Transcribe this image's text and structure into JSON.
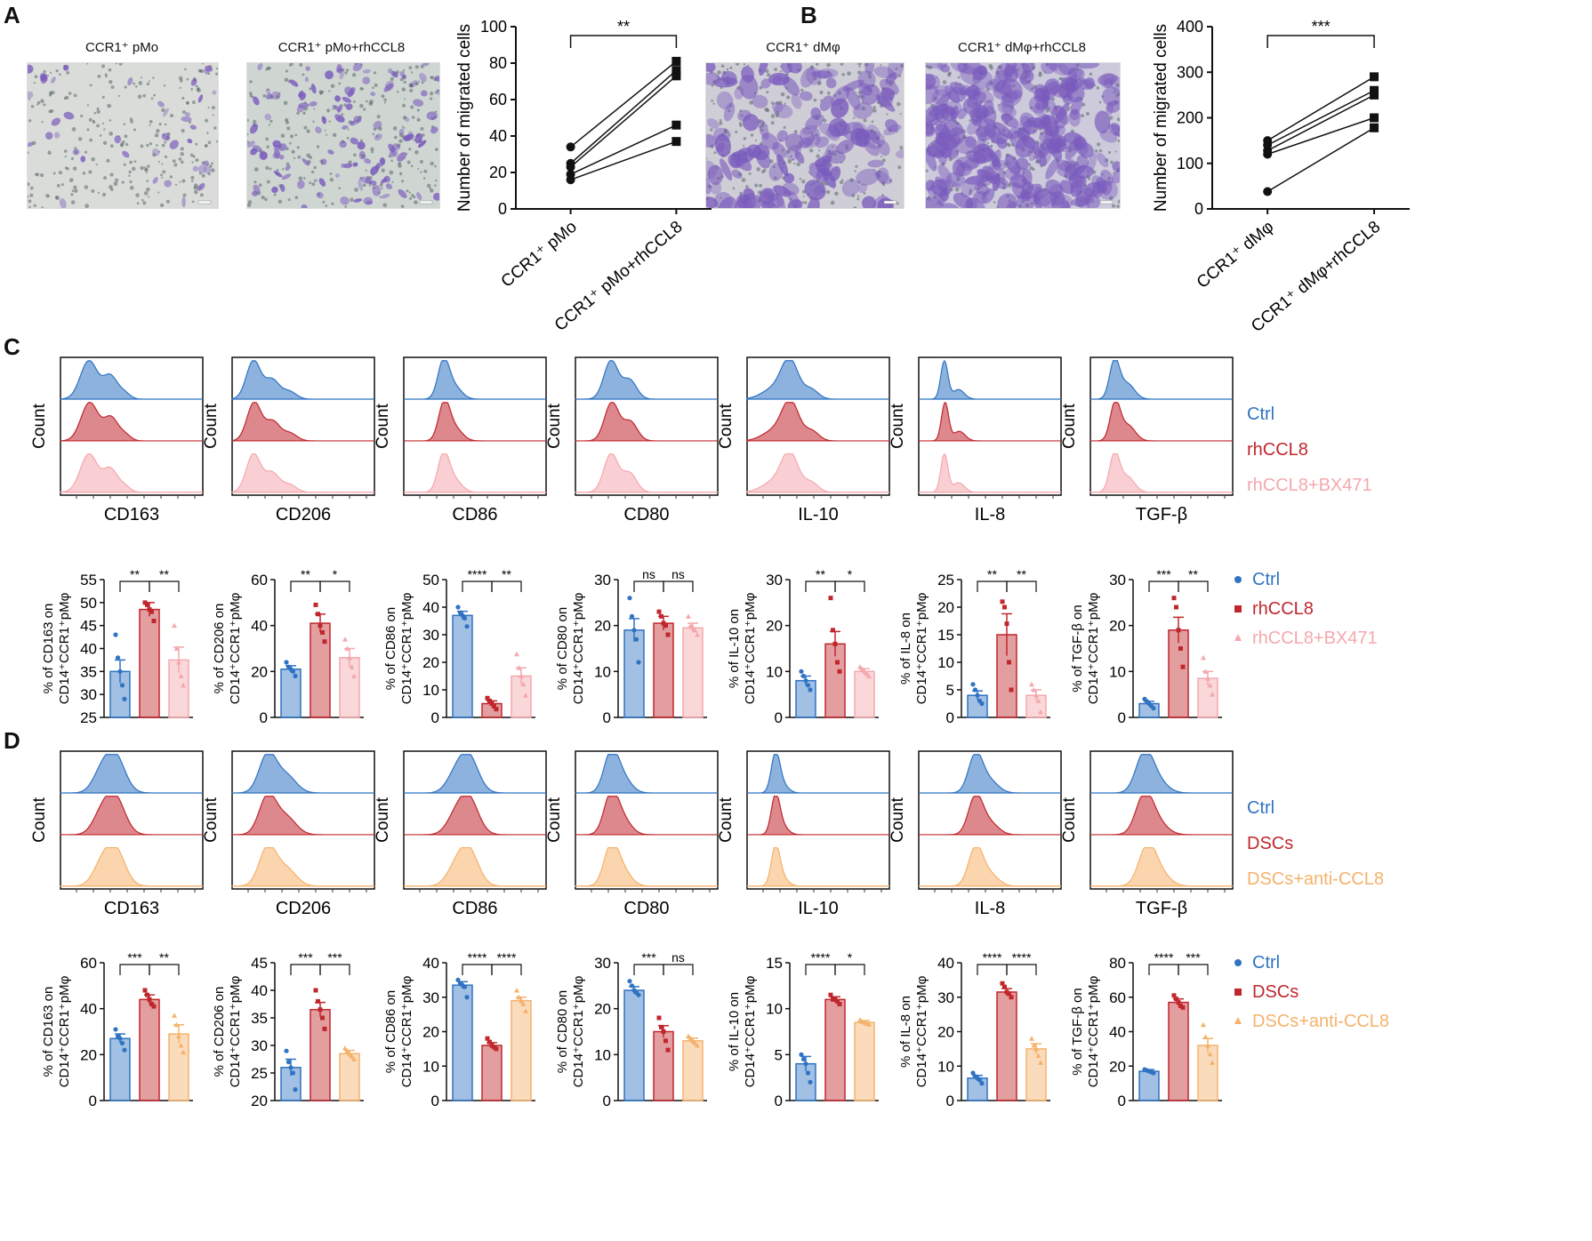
{
  "colors": {
    "ctrl": "#2f73c2",
    "rhccl8": "#c0272d",
    "bx471": "#f4a8ae",
    "dscs": "#c0272d",
    "anti": "#f5b26b",
    "stain": "#7a5bbd",
    "ink": "#111111"
  },
  "panelA": {
    "letter": "A",
    "img1_title": "CCR1⁺ pMo",
    "img2_title": "CCR1⁺ pMo+rhCCL8",
    "chart": {
      "type": "scatter",
      "title": "",
      "ylabel": "Number of migrated cells",
      "ylim": [
        0,
        100
      ],
      "yticks": [
        0,
        20,
        40,
        60,
        80,
        100
      ],
      "categories": [
        "CCR1⁺ pMo",
        "CCR1⁺ pMo+rhCCL8"
      ],
      "pairs": [
        [
          34,
          81
        ],
        [
          25,
          76
        ],
        [
          23,
          73
        ],
        [
          19,
          46
        ],
        [
          16,
          37
        ]
      ],
      "significance": "**"
    }
  },
  "panelB": {
    "letter": "B",
    "img1_title": "CCR1⁺ dMφ",
    "img2_title": "CCR1⁺ dMφ+rhCCL8",
    "chart": {
      "type": "scatter",
      "title": "",
      "ylabel": "Number of migrated cells",
      "ylim": [
        0,
        400
      ],
      "yticks": [
        0,
        100,
        200,
        300,
        400
      ],
      "categories": [
        "CCR1⁺ dMφ",
        "CCR1⁺ dMφ+rhCCL8"
      ],
      "pairs": [
        [
          150,
          290
        ],
        [
          140,
          260
        ],
        [
          128,
          250
        ],
        [
          120,
          200
        ],
        [
          38,
          178
        ]
      ],
      "significance": "***"
    }
  },
  "panelC": {
    "letter": "C",
    "count_label": "Count",
    "markers": [
      "CD163",
      "CD206",
      "CD86",
      "CD80",
      "IL-10",
      "IL-8",
      "TGF-β"
    ],
    "legend": [
      "Ctrl",
      "rhCCL8",
      "rhCCL8+BX471"
    ],
    "chart_data": [
      {
        "type": "bar",
        "marker": "CD163",
        "ylabel": [
          "% of CD163 on",
          "CD14⁺CCR1⁺pMφ"
        ],
        "ylim": [
          25,
          55
        ],
        "yticks": [
          25,
          30,
          35,
          40,
          45,
          50,
          55
        ],
        "groups": [
          "Ctrl",
          "rhCCL8",
          "rhCCL8+BX471"
        ],
        "values": [
          35,
          48.5,
          37.5
        ],
        "sem": [
          2.5,
          1.5,
          2.8
        ],
        "points": [
          [
            43,
            38,
            35,
            32,
            29
          ],
          [
            50,
            49.5,
            48.5,
            48,
            46
          ],
          [
            45,
            40,
            37,
            34,
            32
          ]
        ],
        "sig": [
          "**",
          "**"
        ]
      },
      {
        "type": "bar",
        "marker": "CD206",
        "ylabel": [
          "% of CD206 on",
          "CD14⁺CCR1⁺pMφ"
        ],
        "ylim": [
          0,
          60
        ],
        "yticks": [
          0,
          20,
          40,
          60
        ],
        "groups": [
          "Ctrl",
          "rhCCL8",
          "rhCCL8+BX471"
        ],
        "values": [
          21,
          41,
          26
        ],
        "sem": [
          1.5,
          4,
          4
        ],
        "points": [
          [
            24,
            22,
            21,
            20,
            18
          ],
          [
            49,
            45,
            40,
            37,
            33
          ],
          [
            34,
            30,
            26,
            22,
            18
          ]
        ],
        "sig": [
          "**",
          "*"
        ]
      },
      {
        "type": "bar",
        "marker": "CD86",
        "ylabel": [
          "% of CD86 on",
          "CD14⁺CCR1⁺pMφ"
        ],
        "ylim": [
          0,
          50
        ],
        "yticks": [
          0,
          10,
          20,
          30,
          40,
          50
        ],
        "groups": [
          "Ctrl",
          "rhCCL8",
          "rhCCL8+BX471"
        ],
        "values": [
          37,
          5,
          15
        ],
        "sem": [
          1.5,
          1,
          3
        ],
        "points": [
          [
            40,
            38,
            37,
            36,
            33
          ],
          [
            7,
            6,
            5,
            4,
            3
          ],
          [
            23,
            18,
            15,
            12,
            8
          ]
        ],
        "sig": [
          "****",
          "**"
        ]
      },
      {
        "type": "bar",
        "marker": "CD80",
        "ylabel": [
          "% of CD80 on",
          "CD14⁺CCR1⁺pMφ"
        ],
        "ylim": [
          0,
          30
        ],
        "yticks": [
          0,
          10,
          20,
          30
        ],
        "groups": [
          "Ctrl",
          "rhCCL8",
          "rhCCL8+BX471"
        ],
        "values": [
          19,
          20.5,
          19.5
        ],
        "sem": [
          2.5,
          1.5,
          1
        ],
        "points": [
          [
            26,
            22,
            19,
            17,
            12
          ],
          [
            23,
            22,
            20.5,
            20,
            18
          ],
          [
            22,
            20,
            19.5,
            19,
            18
          ]
        ],
        "sig": [
          "ns",
          "ns"
        ]
      },
      {
        "type": "bar",
        "marker": "IL-10",
        "ylabel": [
          "% of IL-10 on",
          "CD14⁺CCR1⁺pMφ"
        ],
        "ylim": [
          0,
          30
        ],
        "yticks": [
          0,
          10,
          20,
          30
        ],
        "groups": [
          "Ctrl",
          "rhCCL8",
          "rhCCL8+BX471"
        ],
        "values": [
          8,
          16,
          10
        ],
        "sem": [
          1,
          2.7,
          0.6
        ],
        "points": [
          [
            10,
            9,
            8,
            7,
            6
          ],
          [
            26,
            19,
            16,
            12,
            10
          ],
          [
            11,
            10.5,
            10,
            9.5,
            9
          ]
        ],
        "sig": [
          "**",
          "*"
        ]
      },
      {
        "type": "bar",
        "marker": "IL-8",
        "ylabel": [
          "% of IL-8 on",
          "CD14⁺CCR1⁺pMφ"
        ],
        "ylim": [
          0,
          25
        ],
        "yticks": [
          0,
          5,
          10,
          15,
          20,
          25
        ],
        "groups": [
          "Ctrl",
          "rhCCL8",
          "rhCCL8+BX471"
        ],
        "values": [
          4,
          15,
          4
        ],
        "sem": [
          0.8,
          3.8,
          1
        ],
        "points": [
          [
            6,
            5,
            4,
            3,
            2.5
          ],
          [
            21,
            20,
            17,
            10,
            5
          ],
          [
            6,
            5,
            4,
            3,
            1
          ]
        ],
        "sig": [
          "**",
          "**"
        ]
      },
      {
        "type": "bar",
        "marker": "TGF-β",
        "ylabel": [
          "% of TGF-β on",
          "CD14⁺CCR1⁺pMφ"
        ],
        "ylim": [
          0,
          30
        ],
        "yticks": [
          0,
          10,
          20,
          30
        ],
        "groups": [
          "Ctrl",
          "rhCCL8",
          "rhCCL8+BX471"
        ],
        "values": [
          3,
          19,
          8.5
        ],
        "sem": [
          0.5,
          2.8,
          1.5
        ],
        "points": [
          [
            4,
            3.5,
            3,
            2.5,
            2
          ],
          [
            26,
            24,
            19,
            15,
            11
          ],
          [
            13,
            10,
            8.5,
            7,
            5
          ]
        ],
        "sig": [
          "***",
          "**"
        ]
      }
    ]
  },
  "panelD": {
    "letter": "D",
    "count_label": "Count",
    "markers": [
      "CD163",
      "CD206",
      "CD86",
      "CD80",
      "IL-10",
      "IL-8",
      "TGF-β"
    ],
    "legend": [
      "Ctrl",
      "DSCs",
      "DSCs+anti-CCL8"
    ],
    "chart_data": [
      {
        "type": "bar",
        "marker": "CD163",
        "ylabel": [
          "% of CD163 on",
          "CD14⁺CCR1⁺pMφ"
        ],
        "ylim": [
          0,
          60
        ],
        "yticks": [
          0,
          20,
          40,
          60
        ],
        "groups": [
          "Ctrl",
          "DSCs",
          "DSCs+anti-CCL8"
        ],
        "values": [
          27,
          44,
          29
        ],
        "sem": [
          2,
          2,
          4
        ],
        "points": [
          [
            31,
            28,
            27,
            25,
            22
          ],
          [
            48,
            46,
            44,
            42,
            41
          ],
          [
            37,
            33,
            28,
            24,
            21
          ]
        ],
        "sig": [
          "***",
          "**"
        ]
      },
      {
        "type": "bar",
        "marker": "CD206",
        "ylabel": [
          "% of CD206 on",
          "CD14⁺CCR1⁺pMφ"
        ],
        "ylim": [
          20,
          45
        ],
        "yticks": [
          20,
          25,
          30,
          35,
          40,
          45
        ],
        "groups": [
          "Ctrl",
          "DSCs",
          "DSCs+anti-CCL8"
        ],
        "values": [
          26,
          36.5,
          28.5
        ],
        "sem": [
          1.5,
          1.3,
          0.6
        ],
        "points": [
          [
            29,
            27,
            26,
            25,
            22
          ],
          [
            40,
            38,
            36.5,
            35,
            33
          ],
          [
            29.5,
            29,
            28.5,
            28,
            27.5
          ]
        ],
        "sig": [
          "***",
          "***"
        ]
      },
      {
        "type": "bar",
        "marker": "CD86",
        "ylabel": [
          "% of CD86 on",
          "CD14⁺CCR1⁺pMφ"
        ],
        "ylim": [
          0,
          40
        ],
        "yticks": [
          0,
          10,
          20,
          30,
          40
        ],
        "groups": [
          "Ctrl",
          "DSCs",
          "DSCs+anti-CCL8"
        ],
        "values": [
          33.5,
          16,
          29
        ],
        "sem": [
          1,
          0.8,
          1
        ],
        "points": [
          [
            35,
            34,
            33.5,
            33,
            30
          ],
          [
            18,
            17,
            16,
            15.5,
            15
          ],
          [
            32,
            30,
            29,
            28,
            26
          ]
        ],
        "sig": [
          "****",
          "****"
        ]
      },
      {
        "type": "bar",
        "marker": "CD80",
        "ylabel": [
          "% of CD80 on",
          "CD14⁺CCR1⁺pMφ"
        ],
        "ylim": [
          0,
          30
        ],
        "yticks": [
          0,
          10,
          20,
          30
        ],
        "groups": [
          "Ctrl",
          "DSCs",
          "DSCs+anti-CCL8"
        ],
        "values": [
          24,
          15,
          13
        ],
        "sem": [
          0.8,
          1.3,
          0.6
        ],
        "points": [
          [
            26,
            25,
            24,
            23.5,
            23
          ],
          [
            18,
            16,
            15,
            13,
            11
          ],
          [
            14,
            13.5,
            13,
            12.5,
            12
          ]
        ],
        "sig": [
          "***",
          "ns"
        ]
      },
      {
        "type": "bar",
        "marker": "IL-10",
        "ylabel": [
          "% of IL-10 on",
          "CD14⁺CCR1⁺pMφ"
        ],
        "ylim": [
          0,
          15
        ],
        "yticks": [
          0,
          5,
          10,
          15
        ],
        "groups": [
          "Ctrl",
          "DSCs",
          "DSCs+anti-CCL8"
        ],
        "values": [
          4,
          11,
          8.5
        ],
        "sem": [
          0.8,
          0.3,
          0.2
        ],
        "points": [
          [
            5,
            4.5,
            4,
            3,
            2
          ],
          [
            11.5,
            11,
            11,
            10.8,
            10.5
          ],
          [
            8.8,
            8.6,
            8.5,
            8.4,
            8.3
          ]
        ],
        "sig": [
          "****",
          "*"
        ]
      },
      {
        "type": "bar",
        "marker": "IL-8",
        "ylabel": [
          "% of IL-8 on",
          "CD14⁺CCR1⁺pMφ"
        ],
        "ylim": [
          0,
          40
        ],
        "yticks": [
          0,
          10,
          20,
          30,
          40
        ],
        "groups": [
          "Ctrl",
          "DSCs",
          "DSCs+anti-CCL8"
        ],
        "values": [
          6.5,
          31.5,
          15
        ],
        "sem": [
          0.8,
          1,
          1.5
        ],
        "points": [
          [
            8,
            7,
            6.5,
            6,
            5
          ],
          [
            34,
            33,
            31.5,
            31,
            30
          ],
          [
            18,
            16,
            15,
            13,
            11
          ]
        ],
        "sig": [
          "****",
          "****"
        ]
      },
      {
        "type": "bar",
        "marker": "TGF-β",
        "ylabel": [
          "% of TGF-β on",
          "CD14⁺CCR1⁺pMφ"
        ],
        "ylim": [
          0,
          80
        ],
        "yticks": [
          0,
          20,
          40,
          60,
          80
        ],
        "groups": [
          "Ctrl",
          "DSCs",
          "DSCs+anti-CCL8"
        ],
        "values": [
          17,
          57,
          32
        ],
        "sem": [
          1,
          2,
          4
        ],
        "points": [
          [
            18,
            17.5,
            17,
            16.5,
            16
          ],
          [
            61,
            59,
            57,
            55,
            54
          ],
          [
            44,
            37,
            32,
            27,
            22
          ]
        ],
        "sig": [
          "****",
          "***"
        ]
      }
    ]
  }
}
